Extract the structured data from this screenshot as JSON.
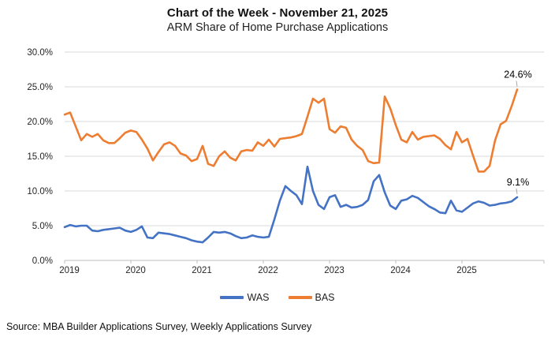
{
  "chart_data": {
    "type": "line",
    "title": "Chart of the Week - November 21, 2025",
    "subtitle": "ARM Share of Home Purchase Applications",
    "xlabel": "",
    "ylabel": "",
    "ylim": [
      0,
      30
    ],
    "grid": true,
    "legend_position": "bottom",
    "x_unit": "monthly",
    "x_start": "2019-01",
    "x_end": "2025-11",
    "x_tick_labels": [
      "2019",
      "2020",
      "2021",
      "2022",
      "2023",
      "2024",
      "2025"
    ],
    "y_tick_labels": [
      "30.0%",
      "25.0%",
      "20.0%",
      "15.0%",
      "10.0%",
      "5.0%",
      "0.0%"
    ],
    "series": [
      {
        "name": "WAS",
        "color": "#4472C4",
        "end_label": "9.1%",
        "values": [
          4.8,
          5.1,
          4.9,
          5.0,
          5.0,
          4.3,
          4.2,
          4.4,
          4.5,
          4.6,
          4.7,
          4.3,
          4.1,
          4.4,
          4.9,
          3.3,
          3.2,
          4.0,
          3.9,
          3.8,
          3.6,
          3.4,
          3.2,
          2.9,
          2.7,
          2.6,
          3.3,
          4.1,
          4.0,
          4.1,
          3.9,
          3.5,
          3.2,
          3.3,
          3.6,
          3.4,
          3.3,
          3.4,
          5.9,
          8.6,
          10.7,
          10.0,
          9.4,
          8.1,
          13.5,
          10.0,
          8.0,
          7.4,
          9.1,
          9.4,
          7.7,
          8.0,
          7.6,
          7.7,
          8.0,
          8.7,
          11.4,
          12.3,
          9.8,
          7.9,
          7.4,
          8.6,
          8.8,
          9.3,
          9.0,
          8.4,
          7.8,
          7.4,
          6.9,
          6.8,
          8.6,
          7.2,
          7.0,
          7.6,
          8.2,
          8.5,
          8.3,
          7.9,
          8.0,
          8.2,
          8.3,
          8.5,
          9.1
        ]
      },
      {
        "name": "BAS",
        "color": "#ED7D31",
        "end_label": "24.6%",
        "values": [
          21.0,
          21.3,
          19.3,
          17.3,
          18.2,
          17.8,
          18.2,
          17.3,
          16.9,
          16.9,
          17.6,
          18.4,
          18.7,
          18.5,
          17.4,
          16.1,
          14.4,
          15.6,
          16.7,
          17.0,
          16.5,
          15.4,
          15.1,
          14.3,
          14.6,
          16.5,
          13.9,
          13.6,
          15.0,
          15.7,
          14.8,
          14.4,
          15.7,
          15.9,
          15.8,
          17.0,
          16.5,
          17.4,
          16.4,
          17.5,
          17.6,
          17.7,
          17.9,
          18.2,
          20.7,
          23.3,
          22.7,
          23.3,
          18.9,
          18.4,
          19.3,
          19.1,
          17.4,
          16.5,
          15.9,
          14.3,
          14.0,
          14.1,
          23.6,
          21.9,
          19.5,
          17.4,
          17.0,
          18.5,
          17.4,
          17.8,
          17.9,
          18.0,
          17.5,
          16.6,
          16.0,
          18.5,
          17.0,
          17.5,
          15.1,
          12.8,
          12.8,
          13.6,
          17.3,
          19.6,
          20.1,
          22.2,
          24.6
        ]
      }
    ]
  },
  "footer": {
    "source": "Source: MBA Builder Applications Survey, Weekly Applications Survey"
  },
  "colors": {
    "grid": "#D9D9D9",
    "axis": "#BFBFBF",
    "tick_text": "#262626",
    "data_label_text": "#000000",
    "leader_line": "#A6A6A6"
  }
}
